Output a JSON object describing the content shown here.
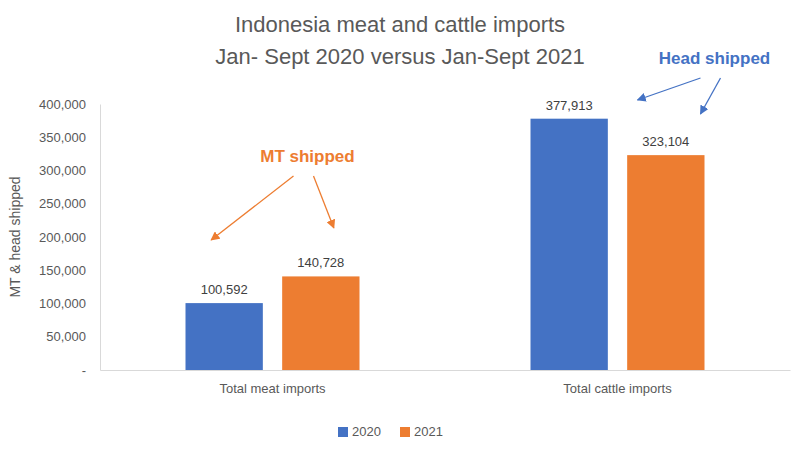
{
  "chart_data": {
    "type": "bar",
    "title": "Indonesia meat and cattle imports",
    "subtitle": "Jan- Sept 2020 versus Jan-Sept 2021",
    "y_label": "MT & head shipped",
    "categories": [
      "Total meat imports",
      "Total cattle imports"
    ],
    "series": [
      {
        "name": "2020",
        "color": "#4472c4",
        "values": [
          100592,
          377913
        ],
        "value_labels": [
          "100,592",
          "377,913"
        ]
      },
      {
        "name": "2021",
        "color": "#ed7d31",
        "values": [
          140728,
          323104
        ],
        "value_labels": [
          "140,728",
          "323,104"
        ]
      }
    ],
    "ylim": [
      0,
      400000
    ],
    "yticks": [
      {
        "value": 0,
        "label": "-"
      },
      {
        "value": 50000,
        "label": "50,000"
      },
      {
        "value": 100000,
        "label": "100,000"
      },
      {
        "value": 150000,
        "label": "150,000"
      },
      {
        "value": 200000,
        "label": "200,000"
      },
      {
        "value": 250000,
        "label": "250,000"
      },
      {
        "value": 300000,
        "label": "300,000"
      },
      {
        "value": 350000,
        "label": "350,000"
      },
      {
        "value": 400000,
        "label": "400,000"
      }
    ],
    "grid": false,
    "legend": "bottom",
    "data_labels": true,
    "annotations": [
      {
        "text": "MT shipped",
        "color": "#ed7d31"
      },
      {
        "text": "Head shipped",
        "color": "#4472c4"
      }
    ]
  }
}
